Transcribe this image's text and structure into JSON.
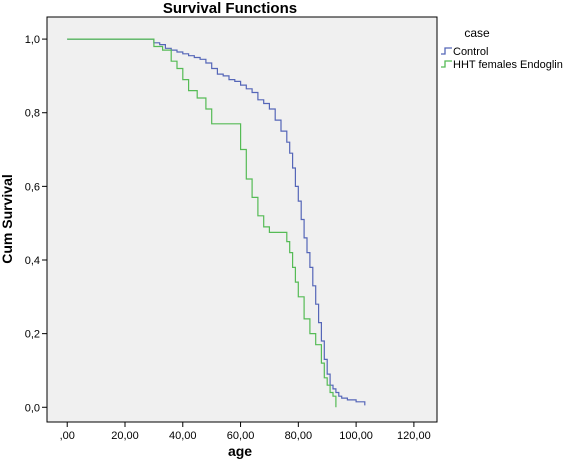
{
  "chart_data": {
    "type": "line",
    "title": "Survival Functions",
    "xlabel": "age",
    "ylabel": "Cum Survival",
    "xlim": [
      -7,
      128
    ],
    "ylim": [
      -0.04,
      1.06
    ],
    "x_ticks": [
      0,
      20,
      40,
      60,
      80,
      100,
      120
    ],
    "x_tick_labels": [
      ",00",
      "20,00",
      "40,00",
      "60,00",
      "80,00",
      "100,00",
      "120,00"
    ],
    "y_ticks": [
      0,
      0.2,
      0.4,
      0.6,
      0.8,
      1.0
    ],
    "y_tick_labels": [
      "0,0",
      "0,2",
      "0,4",
      "0,6",
      "0,8",
      "1,0"
    ],
    "grid": false,
    "legend": {
      "title": "case",
      "position": "top-right"
    },
    "series": [
      {
        "name": "Control",
        "color": "#5566b8",
        "step": true,
        "x": [
          0,
          30,
          32,
          34,
          36,
          38,
          40,
          42,
          44,
          46,
          48,
          50,
          52,
          54,
          56,
          58,
          60,
          62,
          64,
          66,
          68,
          70,
          72,
          74,
          76,
          77,
          78,
          79,
          80,
          81,
          82,
          83,
          84,
          85,
          86,
          87,
          88,
          89,
          90,
          91,
          92,
          93,
          94,
          95,
          97,
          100,
          103
        ],
        "y": [
          1.0,
          0.99,
          0.985,
          0.975,
          0.97,
          0.965,
          0.96,
          0.955,
          0.95,
          0.945,
          0.935,
          0.92,
          0.905,
          0.9,
          0.89,
          0.885,
          0.875,
          0.865,
          0.855,
          0.835,
          0.825,
          0.81,
          0.78,
          0.75,
          0.72,
          0.69,
          0.65,
          0.6,
          0.56,
          0.51,
          0.46,
          0.42,
          0.38,
          0.33,
          0.28,
          0.23,
          0.18,
          0.13,
          0.09,
          0.06,
          0.05,
          0.04,
          0.03,
          0.025,
          0.02,
          0.015,
          0.005
        ]
      },
      {
        "name": "HHT females Endoglin",
        "color": "#55bb55",
        "step": true,
        "x": [
          0,
          30,
          33,
          36,
          38,
          40,
          42,
          45,
          48,
          50,
          56,
          60,
          62,
          64,
          66,
          68,
          70,
          75,
          76,
          77,
          78,
          79,
          80,
          82,
          84,
          86,
          88,
          89,
          90,
          91,
          92,
          93
        ],
        "y": [
          1.0,
          0.98,
          0.97,
          0.94,
          0.92,
          0.89,
          0.86,
          0.84,
          0.81,
          0.77,
          0.77,
          0.7,
          0.62,
          0.57,
          0.52,
          0.49,
          0.475,
          0.475,
          0.45,
          0.42,
          0.38,
          0.34,
          0.3,
          0.24,
          0.2,
          0.17,
          0.12,
          0.08,
          0.06,
          0.04,
          0.03,
          0.0
        ]
      }
    ]
  }
}
